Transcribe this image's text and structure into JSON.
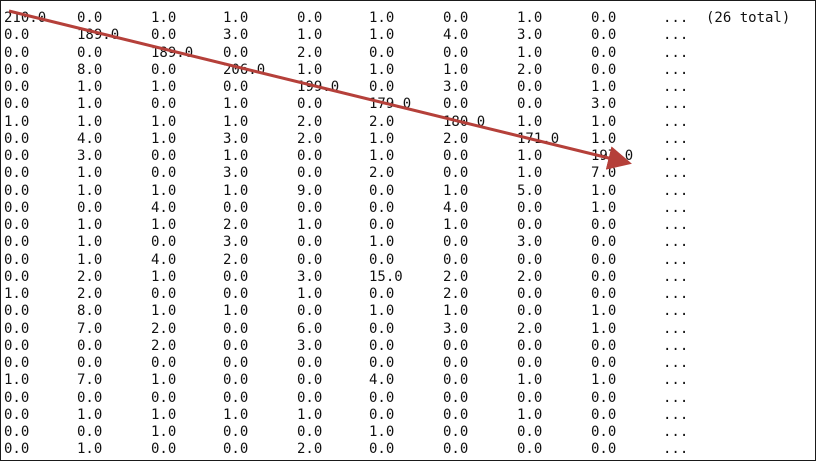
{
  "matrix": {
    "total_note": "(26 total)",
    "ellipsis": "...",
    "rows": [
      [
        "210.0",
        "0.0",
        "1.0",
        "1.0",
        "0.0",
        "1.0",
        "0.0",
        "1.0",
        "0.0"
      ],
      [
        "0.0",
        "189.0",
        "0.0",
        "3.0",
        "1.0",
        "1.0",
        "4.0",
        "3.0",
        "0.0"
      ],
      [
        "0.0",
        "0.0",
        "189.0",
        "0.0",
        "2.0",
        "0.0",
        "0.0",
        "1.0",
        "0.0"
      ],
      [
        "0.0",
        "8.0",
        "0.0",
        "206.0",
        "1.0",
        "1.0",
        "1.0",
        "2.0",
        "0.0"
      ],
      [
        "0.0",
        "1.0",
        "1.0",
        "0.0",
        "199.0",
        "0.0",
        "3.0",
        "0.0",
        "1.0"
      ],
      [
        "0.0",
        "1.0",
        "0.0",
        "1.0",
        "0.0",
        "179.0",
        "0.0",
        "0.0",
        "3.0"
      ],
      [
        "1.0",
        "1.0",
        "1.0",
        "1.0",
        "2.0",
        "2.0",
        "180.0",
        "1.0",
        "1.0"
      ],
      [
        "0.0",
        "4.0",
        "1.0",
        "3.0",
        "2.0",
        "1.0",
        "2.0",
        "171.0",
        "1.0"
      ],
      [
        "0.0",
        "3.0",
        "0.0",
        "1.0",
        "0.0",
        "1.0",
        "0.0",
        "1.0",
        "197.0"
      ],
      [
        "0.0",
        "1.0",
        "0.0",
        "3.0",
        "0.0",
        "2.0",
        "0.0",
        "1.0",
        "7.0"
      ],
      [
        "0.0",
        "1.0",
        "1.0",
        "1.0",
        "9.0",
        "0.0",
        "1.0",
        "5.0",
        "1.0"
      ],
      [
        "0.0",
        "0.0",
        "4.0",
        "0.0",
        "0.0",
        "0.0",
        "4.0",
        "0.0",
        "1.0"
      ],
      [
        "0.0",
        "1.0",
        "1.0",
        "2.0",
        "1.0",
        "0.0",
        "1.0",
        "0.0",
        "0.0"
      ],
      [
        "0.0",
        "1.0",
        "0.0",
        "3.0",
        "0.0",
        "1.0",
        "0.0",
        "3.0",
        "0.0"
      ],
      [
        "0.0",
        "1.0",
        "4.0",
        "2.0",
        "0.0",
        "0.0",
        "0.0",
        "0.0",
        "0.0"
      ],
      [
        "0.0",
        "2.0",
        "1.0",
        "0.0",
        "3.0",
        "15.0",
        "2.0",
        "2.0",
        "0.0"
      ],
      [
        "1.0",
        "2.0",
        "0.0",
        "0.0",
        "1.0",
        "0.0",
        "2.0",
        "0.0",
        "0.0"
      ],
      [
        "0.0",
        "8.0",
        "1.0",
        "1.0",
        "0.0",
        "1.0",
        "1.0",
        "0.0",
        "1.0"
      ],
      [
        "0.0",
        "7.0",
        "2.0",
        "0.0",
        "6.0",
        "0.0",
        "3.0",
        "2.0",
        "1.0"
      ],
      [
        "0.0",
        "0.0",
        "2.0",
        "0.0",
        "3.0",
        "0.0",
        "0.0",
        "0.0",
        "0.0"
      ],
      [
        "0.0",
        "0.0",
        "0.0",
        "0.0",
        "0.0",
        "0.0",
        "0.0",
        "0.0",
        "0.0"
      ],
      [
        "1.0",
        "7.0",
        "1.0",
        "0.0",
        "0.0",
        "4.0",
        "0.0",
        "1.0",
        "1.0"
      ],
      [
        "0.0",
        "0.0",
        "0.0",
        "0.0",
        "0.0",
        "0.0",
        "0.0",
        "0.0",
        "0.0"
      ],
      [
        "0.0",
        "1.0",
        "1.0",
        "1.0",
        "1.0",
        "0.0",
        "0.0",
        "1.0",
        "0.0"
      ],
      [
        "0.0",
        "0.0",
        "1.0",
        "0.0",
        "0.0",
        "1.0",
        "0.0",
        "0.0",
        "0.0"
      ],
      [
        "0.0",
        "1.0",
        "0.0",
        "0.0",
        "2.0",
        "0.0",
        "0.0",
        "0.0",
        "0.0"
      ]
    ]
  },
  "annotation": {
    "arrow_color": "#b5403a"
  }
}
